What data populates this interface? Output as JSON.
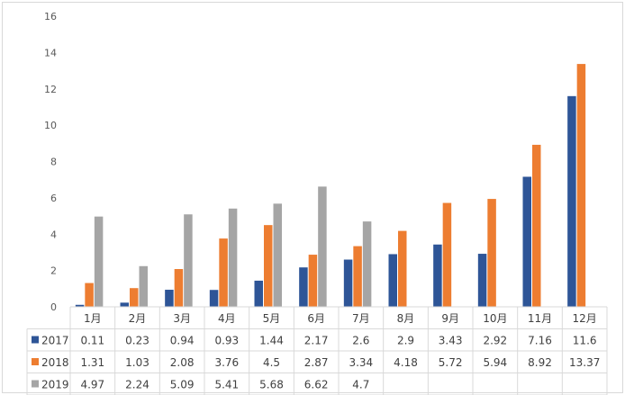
{
  "chart_data": {
    "type": "bar",
    "categories": [
      "1月",
      "2月",
      "3月",
      "4月",
      "5月",
      "6月",
      "7月",
      "8月",
      "9月",
      "10月",
      "11月",
      "12月"
    ],
    "series": [
      {
        "name": "2017",
        "color": "#2e5597",
        "values": [
          0.11,
          0.23,
          0.94,
          0.93,
          1.44,
          2.17,
          2.6,
          2.9,
          3.43,
          2.92,
          7.16,
          11.6
        ]
      },
      {
        "name": "2018",
        "color": "#ed7d31",
        "values": [
          1.31,
          1.03,
          2.08,
          3.76,
          4.5,
          2.87,
          3.34,
          4.18,
          5.72,
          5.94,
          8.92,
          13.37
        ]
      },
      {
        "name": "2019",
        "color": "#a5a5a5",
        "values": [
          4.97,
          2.24,
          5.09,
          5.41,
          5.68,
          6.62,
          4.7,
          null,
          null,
          null,
          null,
          null
        ]
      }
    ],
    "table": [
      [
        "0.11",
        "0.23",
        "0.94",
        "0.93",
        "1.44",
        "2.17",
        "2.6",
        "2.9",
        "3.43",
        "2.92",
        "7.16",
        "11.6"
      ],
      [
        "1.31",
        "1.03",
        "2.08",
        "3.76",
        "4.5",
        "2.87",
        "3.34",
        "4.18",
        "5.72",
        "5.94",
        "8.92",
        "13.37"
      ],
      [
        "4.97",
        "2.24",
        "5.09",
        "5.41",
        "5.68",
        "6.62",
        "4.7",
        "",
        "",
        "",
        "",
        ""
      ]
    ],
    "ylim": [
      0,
      16
    ],
    "yticks": [
      0,
      2,
      4,
      6,
      8,
      10,
      12,
      14,
      16
    ],
    "grid": false,
    "legend": "data-table"
  }
}
